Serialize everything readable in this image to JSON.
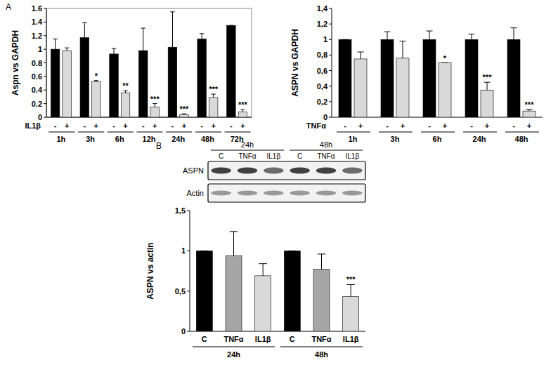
{
  "panel_labels": [
    "A",
    "B"
  ],
  "chart_data": [
    {
      "type": "bar",
      "y_label": "Aspn vs GAPDH",
      "treatment_label": "IL1β",
      "categories": [
        "1h",
        "3h",
        "6h",
        "12h",
        "24h",
        "48h",
        "72h"
      ],
      "series": [
        {
          "name": "-",
          "color": "#000000",
          "values": [
            1.0,
            1.17,
            0.93,
            0.98,
            1.03,
            1.15,
            1.35
          ],
          "errors": [
            0.15,
            0.22,
            0.08,
            0.33,
            0.52,
            0.08,
            0
          ],
          "significance": [
            null,
            null,
            null,
            null,
            null,
            null,
            null
          ]
        },
        {
          "name": "+",
          "color": "#d9d9d9",
          "values": [
            0.98,
            0.52,
            0.36,
            0.15,
            0.04,
            0.29,
            0.08
          ],
          "errors": [
            0.04,
            0.02,
            0.03,
            0.05,
            0.01,
            0.05,
            0.03
          ],
          "significance": [
            null,
            "*",
            "**",
            "***",
            "***",
            "***",
            "***"
          ]
        }
      ],
      "ylim": [
        0,
        1.6
      ],
      "yticks": [
        0,
        0.2,
        0.4,
        0.6,
        0.8,
        1,
        1.2,
        1.4,
        1.6
      ],
      "grid": false
    },
    {
      "type": "bar",
      "y_label": "ASPN vs GAPDH",
      "treatment_label": "TNFα",
      "categories": [
        "1h",
        "3h",
        "6h",
        "24h",
        "48h"
      ],
      "series": [
        {
          "name": "-",
          "color": "#000000",
          "values": [
            1.0,
            1.0,
            1.0,
            1.0,
            1.0
          ],
          "errors": [
            0,
            0.1,
            0.11,
            0.07,
            0.15
          ],
          "significance": [
            null,
            null,
            null,
            null,
            null
          ]
        },
        {
          "name": "+",
          "color": "#d9d9d9",
          "values": [
            0.75,
            0.76,
            0.7,
            0.35,
            0.08
          ],
          "errors": [
            0.09,
            0.22,
            0,
            0.1,
            0.02
          ],
          "significance": [
            null,
            null,
            "*",
            "***",
            "***"
          ]
        }
      ],
      "ylim": [
        0,
        1.4
      ],
      "yticks": [
        0,
        {
          "value": 0.2,
          "label": "0,2"
        },
        {
          "value": 0.4,
          "label": "0,4"
        },
        {
          "value": 0.6,
          "label": "0,6"
        },
        {
          "value": 0.8,
          "label": "0,8"
        },
        1,
        {
          "value": 1.2,
          "label": "1,2"
        },
        {
          "value": 1.4,
          "label": "1,4"
        }
      ],
      "grid": false
    },
    {
      "type": "bar",
      "y_label": "ASPN vs actin",
      "categories": [
        "C",
        "TNFα",
        "IL1β",
        "C",
        "TNFα",
        "IL1β"
      ],
      "groups": [
        {
          "label": "24h",
          "count": 3
        },
        {
          "label": "48h",
          "count": 3
        }
      ],
      "values": [
        1,
        0.94,
        0.69,
        1,
        0.77,
        0.43
      ],
      "errors": [
        0,
        0.3,
        0.15,
        0,
        0.19,
        0.15
      ],
      "significance": [
        null,
        null,
        null,
        null,
        null,
        "***"
      ],
      "colors": [
        "#000000",
        "#a6a6a6",
        "#d9d9d9",
        "#000000",
        "#a6a6a6",
        "#d9d9d9"
      ],
      "ylim": [
        0,
        1.5
      ],
      "yticks": [
        0,
        {
          "value": 0.5,
          "label": "0,5"
        },
        1,
        {
          "value": 1.5,
          "label": "1,5"
        }
      ],
      "grid": false
    }
  ],
  "blot": {
    "groups": [
      {
        "label": "24h",
        "count": 3
      },
      {
        "label": "48h",
        "count": 3
      }
    ],
    "lanes": [
      "C",
      "TNFα",
      "IL1β",
      "C",
      "TNFα",
      "IL1β"
    ],
    "rows": [
      "ASPN",
      "Actin"
    ]
  }
}
